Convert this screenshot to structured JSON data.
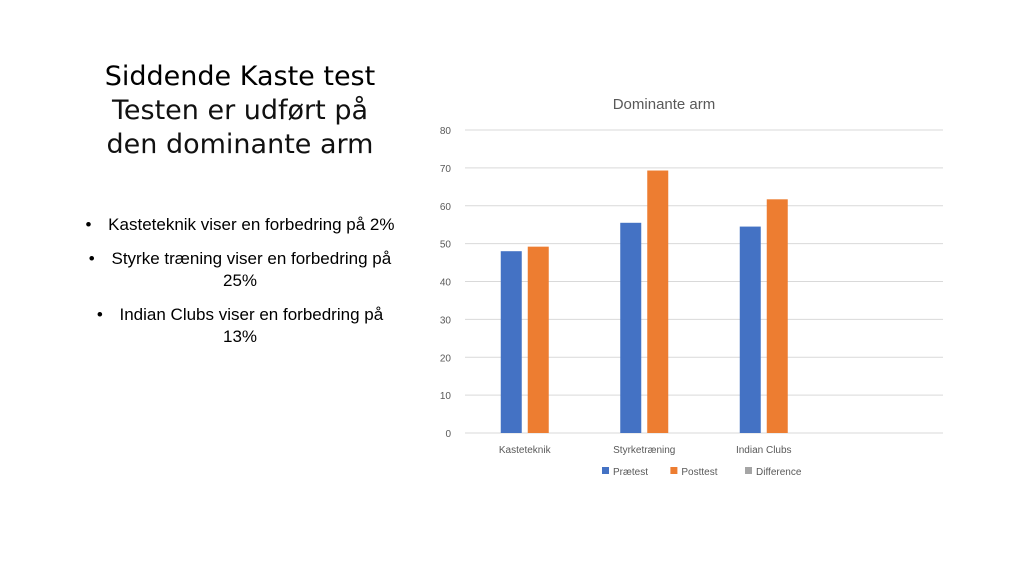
{
  "slide": {
    "title_line1": "Siddende Kaste test",
    "title_line2": "Testen er udført på",
    "title_line3": "den dominante arm",
    "bullets": [
      "Kasteteknik viser en forbedring på 2%",
      "Styrke træning viser en forbedring på 25%",
      "Indian Clubs viser en forbedring på 13%"
    ]
  },
  "colors": {
    "pretest": "#4472C4",
    "posttest": "#ED7D31",
    "difference": "#A5A5A5",
    "grid": "#D9D9D9",
    "text": "#595959"
  },
  "chart_data": {
    "type": "bar",
    "title": "Dominante arm",
    "categories": [
      "Kasteteknik",
      "Styrketræning",
      "Indian Clubs",
      ""
    ],
    "series": [
      {
        "name": "Prætest",
        "values": [
          48,
          55.5,
          54.5,
          null
        ]
      },
      {
        "name": "Posttest",
        "values": [
          49.2,
          69.3,
          61.7,
          null
        ]
      },
      {
        "name": "Difference",
        "values": [
          null,
          null,
          null,
          null
        ]
      }
    ],
    "yticks": [
      0,
      10,
      20,
      30,
      40,
      50,
      60,
      70,
      80
    ],
    "ylim": [
      0,
      80
    ],
    "grid": true,
    "legend": "bottom"
  }
}
